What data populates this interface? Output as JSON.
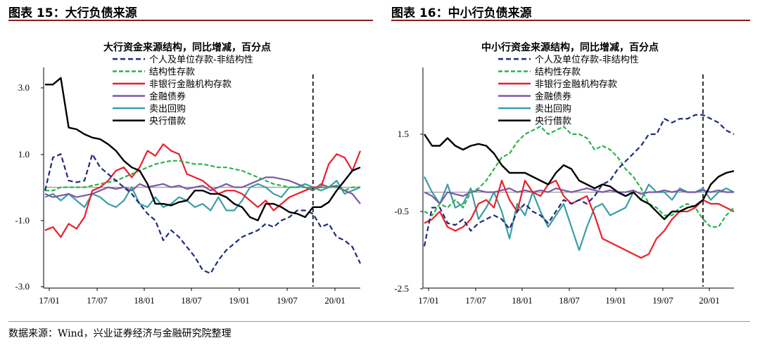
{
  "header": {
    "left": "图表 15：大行负债来源",
    "right": "图表 16：中小行负债来源"
  },
  "source": "数据来源：Wind，兴业证券经济与金融研究院整理",
  "colors": {
    "personal": "#1f2a7a",
    "structured": "#2db34a",
    "interbank": "#e8212a",
    "bonds": "#7b5aa6",
    "repo": "#3a9ea5",
    "central": "#000000",
    "zero": "#999999"
  },
  "chart_data": [
    {
      "type": "line",
      "title": "大行资金来源结构，同比增减，百分点",
      "y_ticks": [
        "3.0",
        "1.0",
        "-1.0",
        "-3.0"
      ],
      "x_ticks": [
        "17/01",
        "17/07",
        "18/01",
        "18/07",
        "19/01",
        "19/07",
        "20/01"
      ],
      "ylim": [
        -3.0,
        3.6
      ],
      "months": 41,
      "vline_at": 34,
      "series": [
        {
          "key": "personal",
          "name": "个人及单位存款-非结构性",
          "dash": "dash",
          "values": [
            -0.1,
            0.9,
            1.0,
            0.2,
            0.15,
            0.2,
            1.0,
            0.6,
            0.4,
            0.2,
            0.0,
            -0.2,
            -0.5,
            -0.8,
            -1.0,
            -1.6,
            -1.3,
            -1.5,
            -1.8,
            -2.1,
            -2.5,
            -2.6,
            -2.2,
            -1.9,
            -1.7,
            -1.5,
            -1.4,
            -1.3,
            -1.1,
            -1.2,
            -1.0,
            -0.9,
            -0.7,
            -0.7,
            -0.8,
            -1.2,
            -1.1,
            -1.5,
            -1.6,
            -1.8,
            -2.3
          ]
        },
        {
          "key": "structured",
          "name": "结构性存款",
          "dash": "dash2",
          "values": [
            -0.1,
            -0.1,
            0.0,
            0.0,
            0.0,
            0.0,
            0.05,
            0.1,
            0.15,
            0.2,
            0.3,
            0.4,
            0.5,
            0.6,
            0.7,
            0.75,
            0.8,
            0.8,
            0.75,
            0.7,
            0.7,
            0.65,
            0.6,
            0.6,
            0.55,
            0.5,
            0.4,
            0.3,
            0.2,
            0.1,
            0.05,
            0.0,
            0.0,
            0.0,
            -0.05,
            0.0,
            0.0,
            0.0,
            -0.1,
            0.0,
            0.0
          ]
        },
        {
          "key": "interbank",
          "name": "非银行金融机构存款",
          "dash": "solid",
          "values": [
            -1.3,
            -1.2,
            -1.5,
            -1.1,
            -1.25,
            -0.9,
            -0.1,
            0.0,
            0.2,
            0.5,
            0.6,
            0.3,
            0.6,
            1.1,
            0.95,
            1.3,
            1.1,
            1.0,
            0.4,
            0.3,
            0.2,
            0.0,
            -0.2,
            -0.1,
            -0.1,
            -0.2,
            -0.4,
            -0.6,
            -0.4,
            -0.7,
            -0.5,
            -0.3,
            -0.2,
            -0.1,
            0.0,
            0.0,
            0.7,
            1.0,
            0.9,
            0.5,
            1.1
          ]
        },
        {
          "key": "bonds",
          "name": "金融债券",
          "dash": "solid",
          "values": [
            -0.2,
            -0.3,
            -0.25,
            -0.2,
            -0.3,
            -0.25,
            -0.2,
            -0.1,
            0.0,
            -0.05,
            0.0,
            -0.1,
            0.1,
            0.0,
            0.05,
            0.1,
            0.0,
            0.05,
            -0.05,
            0.0,
            0.05,
            -0.1,
            0.0,
            0.1,
            0.0,
            0.0,
            0.1,
            0.2,
            0.3,
            0.3,
            0.25,
            0.2,
            0.1,
            0.0,
            -0.1,
            0.1,
            0.0,
            0.05,
            -0.1,
            -0.2,
            -0.5
          ]
        },
        {
          "key": "repo",
          "name": "卖出回购",
          "dash": "solid",
          "values": [
            -0.3,
            -0.2,
            -0.4,
            -0.2,
            -0.4,
            -0.6,
            -0.2,
            -0.3,
            -0.5,
            -0.6,
            -0.4,
            0.0,
            -0.5,
            -0.6,
            -0.3,
            -0.6,
            -0.5,
            -0.3,
            -0.4,
            -0.6,
            -0.5,
            -0.7,
            -0.3,
            -0.7,
            -0.7,
            -0.4,
            0.0,
            0.1,
            0.0,
            -0.2,
            -0.3,
            0.0,
            0.0,
            0.1,
            0.0,
            -0.1,
            0.0,
            0.2,
            -0.2,
            -0.1,
            0.0
          ]
        },
        {
          "key": "central",
          "name": "央行借款",
          "dash": "solid",
          "values": [
            3.1,
            3.1,
            3.3,
            1.8,
            1.75,
            1.6,
            1.5,
            1.45,
            1.3,
            1.1,
            0.8,
            0.6,
            0.5,
            0.1,
            -0.5,
            -0.5,
            -0.55,
            -0.45,
            -0.4,
            -0.1,
            -0.1,
            -0.2,
            -0.2,
            -0.3,
            -0.5,
            -0.6,
            -0.9,
            -1.0,
            -0.5,
            -0.5,
            -0.6,
            -0.75,
            -0.8,
            -0.9,
            -0.6,
            -0.6,
            -0.45,
            -0.1,
            0.2,
            0.5,
            0.6
          ]
        }
      ]
    },
    {
      "type": "line",
      "title": "中小行资金来源结构，同比增减，百分点",
      "y_ticks": [
        "1.5",
        "-0.5",
        "-2.5"
      ],
      "x_ticks": [
        "17/01",
        "17/07",
        "18/01",
        "18/07",
        "19/01",
        "19/07",
        "20/01"
      ],
      "ylim": [
        -2.5,
        2.6
      ],
      "months": 41,
      "vline_at": 36,
      "series": [
        {
          "key": "personal",
          "name": "个人及单位存款-非结构性",
          "dash": "dash",
          "values": [
            -1.4,
            -0.4,
            -0.4,
            -0.8,
            -0.85,
            -0.7,
            -1.0,
            -0.8,
            -0.7,
            -0.6,
            -0.7,
            -0.95,
            -0.5,
            -0.3,
            -0.5,
            -0.6,
            -0.8,
            -0.5,
            -0.2,
            -0.3,
            -0.2,
            -0.3,
            -0.1,
            0.2,
            0.3,
            0.6,
            0.8,
            1.0,
            1.2,
            1.5,
            1.5,
            1.9,
            1.8,
            1.9,
            1.9,
            2.0,
            2.0,
            1.9,
            1.8,
            1.6,
            1.5
          ]
        },
        {
          "key": "structured",
          "name": "结构性存款",
          "dash": "dash2",
          "values": [
            -0.5,
            -0.6,
            -0.3,
            -0.4,
            -0.2,
            -0.4,
            0.0,
            0.1,
            0.3,
            0.6,
            0.9,
            1.0,
            1.3,
            1.5,
            1.6,
            1.7,
            1.5,
            1.6,
            1.7,
            1.5,
            1.5,
            1.4,
            1.1,
            1.2,
            1.1,
            0.9,
            0.6,
            0.4,
            0.1,
            -0.3,
            -0.4,
            -0.6,
            -0.6,
            -0.4,
            -0.3,
            -0.4,
            -0.7,
            -0.9,
            -0.9,
            -0.6,
            -0.4
          ]
        },
        {
          "key": "interbank",
          "name": "非银行金融机构存款",
          "dash": "solid",
          "values": [
            -0.8,
            -0.7,
            -0.5,
            -0.9,
            -1.0,
            -0.9,
            -0.7,
            -0.3,
            -0.2,
            -0.4,
            0.3,
            -0.2,
            -0.5,
            0.3,
            0.0,
            -0.1,
            0.2,
            0.3,
            -0.1,
            -0.3,
            -0.2,
            -0.1,
            -0.6,
            -1.2,
            -1.3,
            -1.4,
            -1.5,
            -1.6,
            -1.7,
            -1.6,
            -1.2,
            -1.0,
            -0.7,
            -0.5,
            -0.5,
            -0.4,
            -0.2,
            -0.3,
            -0.3,
            -0.4,
            -0.5
          ]
        },
        {
          "key": "bonds",
          "name": "金融债券",
          "dash": "solid",
          "values": [
            0.0,
            -0.1,
            -0.3,
            0.0,
            -0.05,
            -0.1,
            0.0,
            0.05,
            0.0,
            0.0,
            0.05,
            0.1,
            0.0,
            0.05,
            0.0,
            0.05,
            0.0,
            0.1,
            0.05,
            0.0,
            0.05,
            0.1,
            0.05,
            0.0,
            0.05,
            0.0,
            0.0,
            0.05,
            -0.05,
            0.0,
            0.0,
            0.05,
            0.0,
            0.05,
            0.0,
            0.0,
            0.05,
            0.0,
            0.05,
            0.0,
            0.0
          ]
        },
        {
          "key": "repo",
          "name": "卖出回购",
          "dash": "solid",
          "values": [
            0.4,
            0.0,
            -0.3,
            0.2,
            -0.4,
            -0.3,
            0.1,
            -0.7,
            -0.4,
            0.0,
            -0.5,
            -1.2,
            -0.3,
            -0.6,
            0.0,
            -0.5,
            -0.9,
            -0.6,
            -0.3,
            -0.9,
            -1.5,
            -0.9,
            -0.4,
            -0.3,
            -0.6,
            -0.5,
            -0.4,
            0.0,
            -0.2,
            0.2,
            0.0,
            0.0,
            -0.2,
            0.1,
            0.0,
            0.0,
            0.1,
            -0.2,
            0.0,
            0.1,
            0.0
          ]
        },
        {
          "key": "central",
          "name": "央行借款",
          "dash": "solid",
          "values": [
            1.5,
            1.2,
            1.2,
            1.4,
            1.2,
            1.1,
            1.2,
            1.25,
            1.2,
            1.0,
            0.7,
            0.5,
            0.5,
            0.5,
            0.4,
            0.3,
            0.2,
            0.5,
            0.7,
            0.6,
            0.3,
            0.2,
            0.1,
            0.2,
            0.15,
            0.0,
            -0.1,
            0.0,
            -0.2,
            -0.3,
            -0.5,
            -0.7,
            -0.5,
            -0.5,
            -0.4,
            -0.35,
            -0.2,
            0.2,
            0.4,
            0.5,
            0.55
          ]
        }
      ]
    }
  ]
}
